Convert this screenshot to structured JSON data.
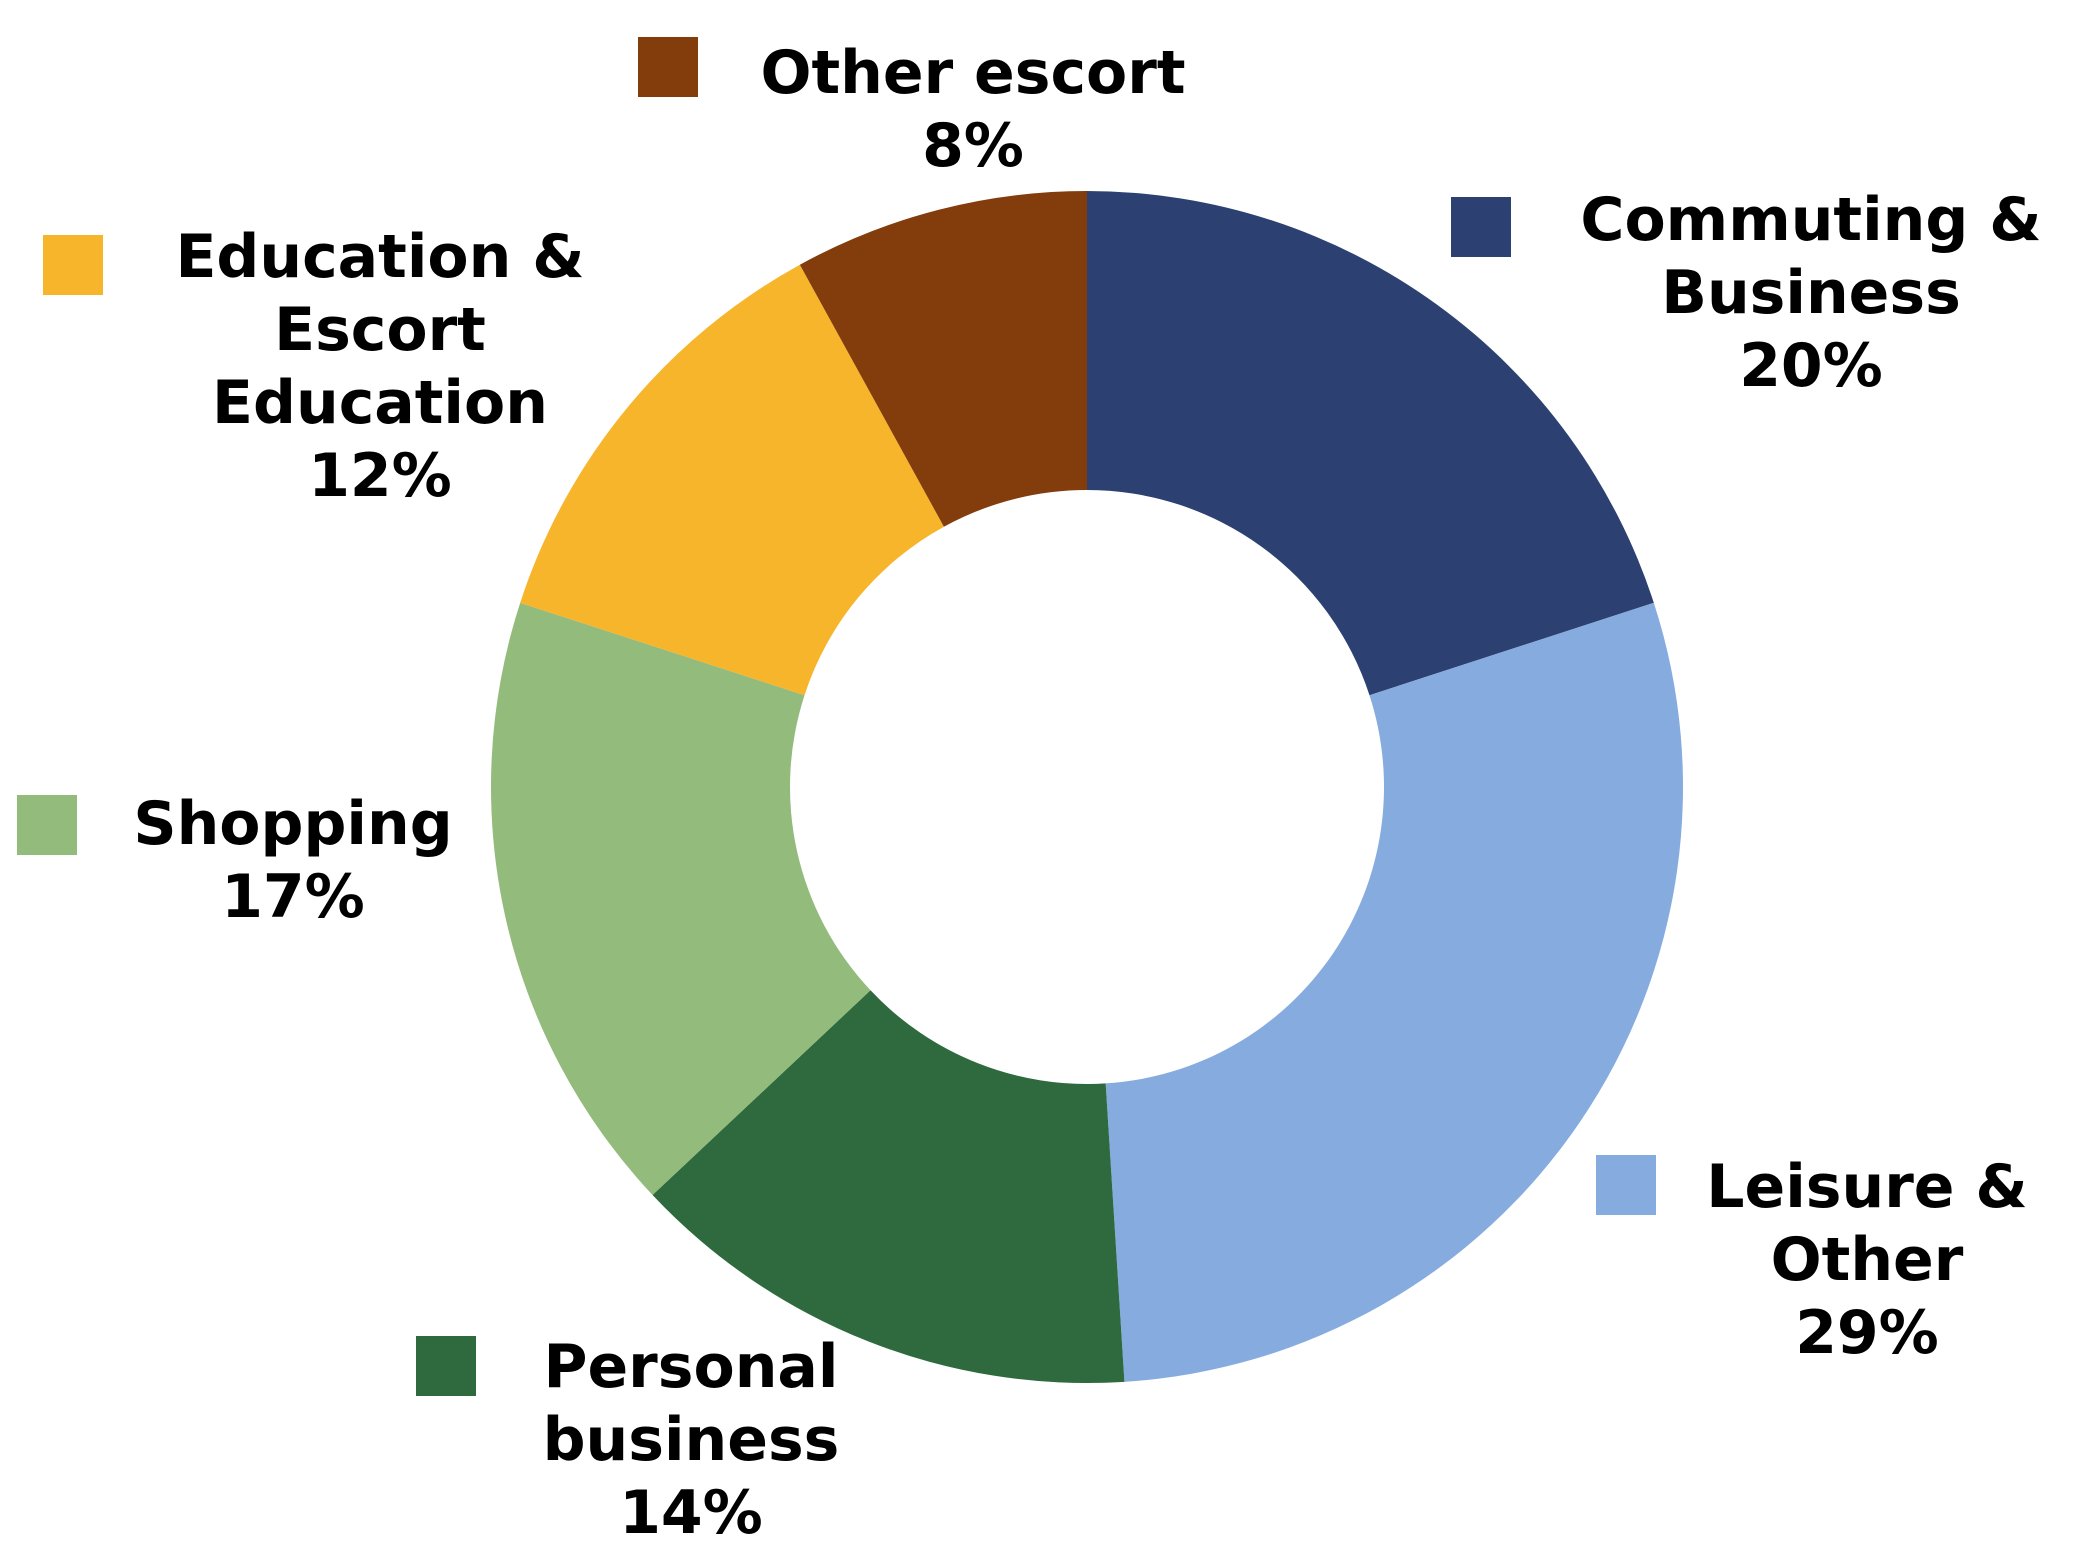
{
  "chart_data": {
    "type": "donut",
    "categories": [
      "Commuting & Business",
      "Leisure & Other",
      "Personal business",
      "Shopping",
      "Education & Escort Education",
      "Other escort"
    ],
    "values": [
      20,
      29,
      14,
      17,
      12,
      8
    ],
    "value_labels": [
      "20%",
      "29%",
      "14%",
      "17%",
      "12%",
      "8%"
    ],
    "colors": [
      "#2c4172",
      "#86acdf",
      "#2e6a3d",
      "#93bb7b",
      "#f7b52b",
      "#833c0c"
    ]
  }
}
